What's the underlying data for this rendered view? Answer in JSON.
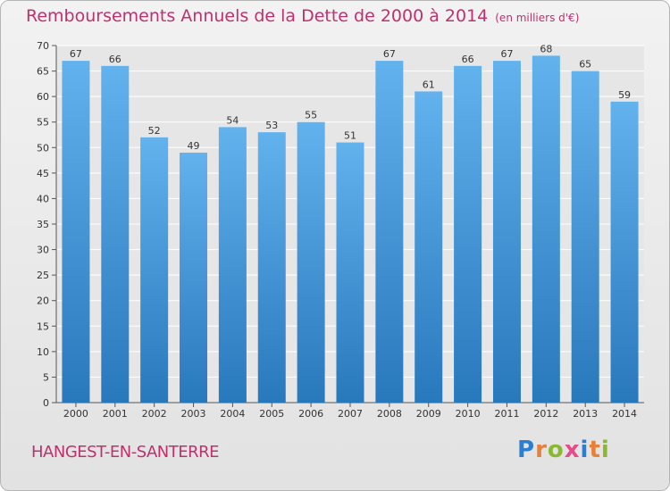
{
  "chart_data": {
    "type": "bar",
    "title": "Remboursements Annuels de la Dette de 2000 à 2014",
    "unit": "(en milliers d'€)",
    "categories": [
      "2000",
      "2001",
      "2002",
      "2003",
      "2004",
      "2005",
      "2006",
      "2007",
      "2008",
      "2009",
      "2010",
      "2011",
      "2012",
      "2013",
      "2014"
    ],
    "values": [
      67,
      66,
      52,
      49,
      54,
      53,
      55,
      51,
      67,
      61,
      66,
      67,
      68,
      65,
      59
    ],
    "ylim": [
      0,
      70
    ],
    "yticks": [
      0,
      5,
      10,
      15,
      20,
      25,
      30,
      35,
      40,
      45,
      50,
      55,
      60,
      65,
      70
    ],
    "xlabel": "",
    "ylabel": "",
    "grid": true,
    "bar_color": "#3d8fd6"
  },
  "commune": "HANGEST-EN-SANTERRE",
  "logo": {
    "letters": [
      "P",
      "r",
      "o",
      "x",
      "i",
      "t",
      "i"
    ],
    "colors": [
      "#2a7fd0",
      "#e8803a",
      "#8ab832",
      "#e84a8a",
      "#2a7fd0",
      "#e8803a",
      "#8ab832"
    ]
  }
}
